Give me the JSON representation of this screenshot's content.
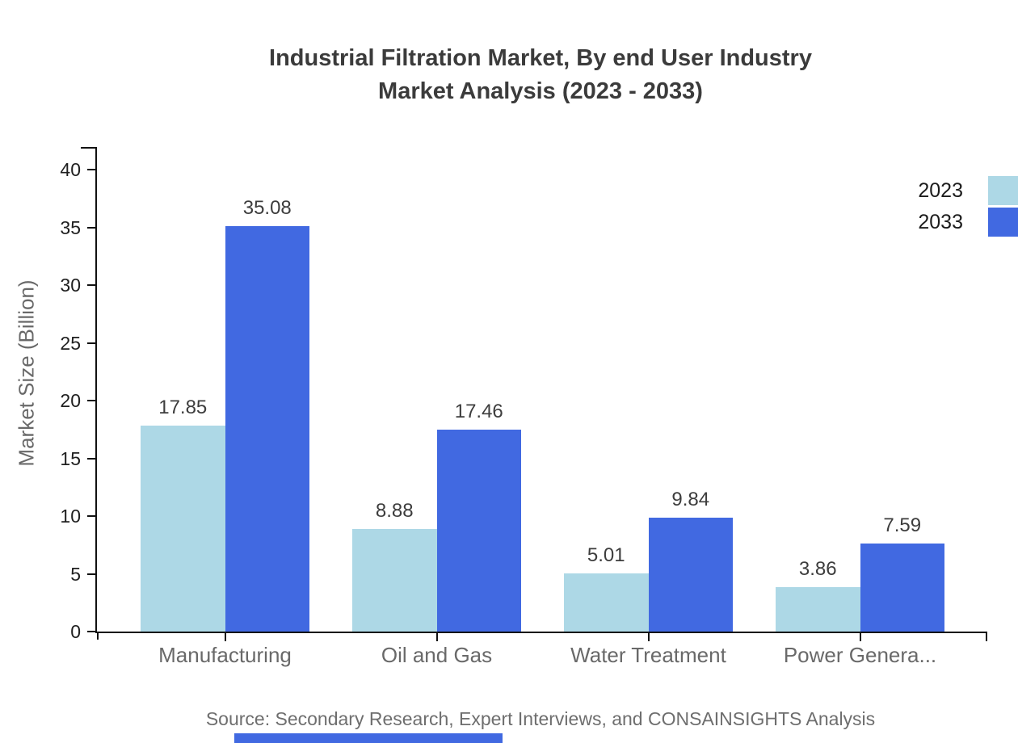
{
  "header": {
    "title_line1": "Industrial Filtration Market, By end User Industry",
    "title_line2": "Market Analysis (2023 - 2033)"
  },
  "source_note": "Source: Secondary Research, Expert Interviews, and CONSAINSIGHTS Analysis",
  "decorations": {
    "bottom_bar_color": "#4169E1"
  },
  "chart_data": {
    "type": "bar",
    "title": "Industrial Filtration Market, By end User Industry Market Analysis (2023 - 2033)",
    "categories": [
      "Manufacturing",
      "Oil and Gas",
      "Water Treatment",
      "Power Genera..."
    ],
    "series": [
      {
        "name": "2023",
        "color": "#ADD8E6",
        "values": [
          17.85,
          8.88,
          5.01,
          3.86
        ]
      },
      {
        "name": "2033",
        "color": "#4169E1",
        "values": [
          35.08,
          17.46,
          9.84,
          7.59
        ]
      }
    ],
    "xlabel": "",
    "ylabel": "Market Size (Billion)",
    "yticks": [
      0,
      5,
      10,
      15,
      20,
      25,
      30,
      35,
      40
    ],
    "ylim": [
      0,
      42
    ],
    "grid": false,
    "legend_position": "top-right",
    "value_labels_decimals": 2,
    "axis_color": "#111111",
    "text_colors": {
      "title": "#3b3b3b",
      "tick_labels": "#1f1f1f",
      "category_labels": "#696969",
      "value_labels": "#3d3d3d",
      "axis_title": "#696969",
      "source": "#6e6e6e"
    }
  }
}
